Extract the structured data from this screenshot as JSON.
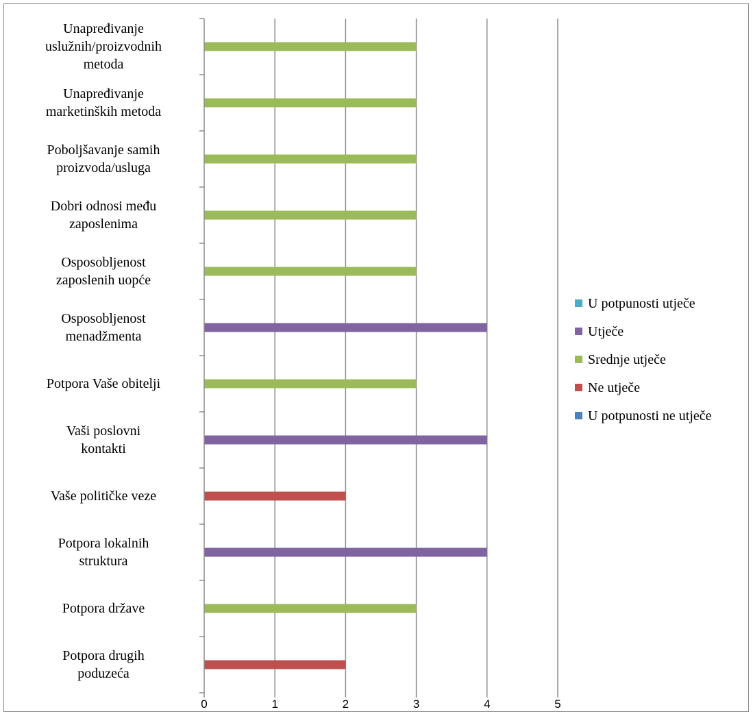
{
  "chart_data": {
    "type": "bar",
    "orientation": "horizontal",
    "title": "",
    "xlabel": "",
    "ylabel": "",
    "xlim": [
      0,
      5
    ],
    "x_ticks": [
      "0",
      "1",
      "2",
      "3",
      "4",
      "5"
    ],
    "grid": true,
    "legend_position": "right",
    "categories": [
      "Unapređivanje uslužnih/proizvodnih metoda",
      "Unapređivanje marketinških metoda",
      "Poboljšavanje samih proizvoda/usluga",
      "Dobri odnosi među zaposlenima",
      "Osposobljenost zaposlenih uopće",
      "Osposobljenost menadžmenta",
      "Potpora Vaše obitelji",
      "Vaši poslovni kontakti",
      "Vaše političke veze",
      "Potpora lokalnih struktura",
      "Potpora države",
      "Potpora drugih poduzeća"
    ],
    "category_lines": [
      [
        "Unapređivanje",
        "uslužnih/proizvodnih",
        "metoda"
      ],
      [
        "Unapređivanje",
        "marketinških metoda"
      ],
      [
        "Poboljšavanje samih",
        "proizvoda/usluga"
      ],
      [
        "Dobri odnosi među",
        "zaposlenima"
      ],
      [
        "Osposobljenost",
        "zaposlenih uopće"
      ],
      [
        "Osposobljenost",
        "menadžmenta"
      ],
      [
        "Potpora Vaše obitelji"
      ],
      [
        "Vaši poslovni",
        "kontakti"
      ],
      [
        "Vaše političke veze"
      ],
      [
        "Potpora lokalnih",
        "struktura"
      ],
      [
        "Potpora države"
      ],
      [
        "Potpora drugih",
        "poduzeća"
      ]
    ],
    "series": [
      {
        "name": "U potpunosti ne utječe",
        "color": "#4F81BD",
        "values": [
          0,
          0,
          0,
          0,
          0,
          0,
          0,
          0,
          0,
          0,
          0,
          0
        ]
      },
      {
        "name": "Ne utječe",
        "color": "#C0504D",
        "values": [
          0,
          0,
          0,
          0,
          0,
          0,
          0,
          0,
          2,
          0,
          0,
          2
        ]
      },
      {
        "name": "Srednje utječe",
        "color": "#9BBB59",
        "values": [
          3,
          3,
          3,
          3,
          3,
          0,
          3,
          0,
          0,
          0,
          3,
          0
        ]
      },
      {
        "name": "Utječe",
        "color": "#8064A2",
        "values": [
          0,
          0,
          0,
          0,
          0,
          4,
          0,
          4,
          0,
          4,
          0,
          0
        ]
      },
      {
        "name": "U potpunosti utječe",
        "color": "#4BACC6",
        "values": [
          0,
          0,
          0,
          0,
          0,
          0,
          0,
          0,
          0,
          0,
          0,
          0
        ]
      }
    ],
    "legend_order": [
      "U potpunosti utječe",
      "Utječe",
      "Srednje utječe",
      "Ne utječe",
      "U potpunosti ne utječe"
    ]
  }
}
